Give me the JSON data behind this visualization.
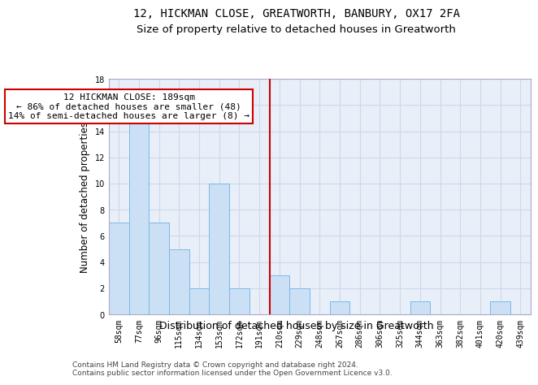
{
  "title1": "12, HICKMAN CLOSE, GREATWORTH, BANBURY, OX17 2FA",
  "title2": "Size of property relative to detached houses in Greatworth",
  "xlabel": "Distribution of detached houses by size in Greatworth",
  "ylabel": "Number of detached properties",
  "categories": [
    "58sqm",
    "77sqm",
    "96sqm",
    "115sqm",
    "134sqm",
    "153sqm",
    "172sqm",
    "191sqm",
    "210sqm",
    "229sqm",
    "248sqm",
    "267sqm",
    "286sqm",
    "306sqm",
    "325sqm",
    "344sqm",
    "363sqm",
    "382sqm",
    "401sqm",
    "420sqm",
    "439sqm"
  ],
  "values": [
    7,
    15,
    7,
    5,
    2,
    10,
    2,
    0,
    3,
    2,
    0,
    1,
    0,
    0,
    0,
    1,
    0,
    0,
    0,
    1,
    0
  ],
  "bar_color": "#cce0f5",
  "bar_edge_color": "#7ab8e8",
  "grid_color": "#d0d8e8",
  "background_color": "#e8eff8",
  "vline_x": 7.5,
  "vline_color": "#cc0000",
  "annotation_text": "12 HICKMAN CLOSE: 189sqm\n← 86% of detached houses are smaller (48)\n14% of semi-detached houses are larger (8) →",
  "annotation_box_color": "#cc0000",
  "ylim": [
    0,
    18
  ],
  "yticks": [
    0,
    2,
    4,
    6,
    8,
    10,
    12,
    14,
    16,
    18
  ],
  "footer": "Contains HM Land Registry data © Crown copyright and database right 2024.\nContains public sector information licensed under the Open Government Licence v3.0.",
  "title1_fontsize": 10,
  "title2_fontsize": 9.5,
  "xlabel_fontsize": 9,
  "ylabel_fontsize": 8.5,
  "tick_fontsize": 7,
  "annotation_fontsize": 8,
  "footer_fontsize": 6.5
}
